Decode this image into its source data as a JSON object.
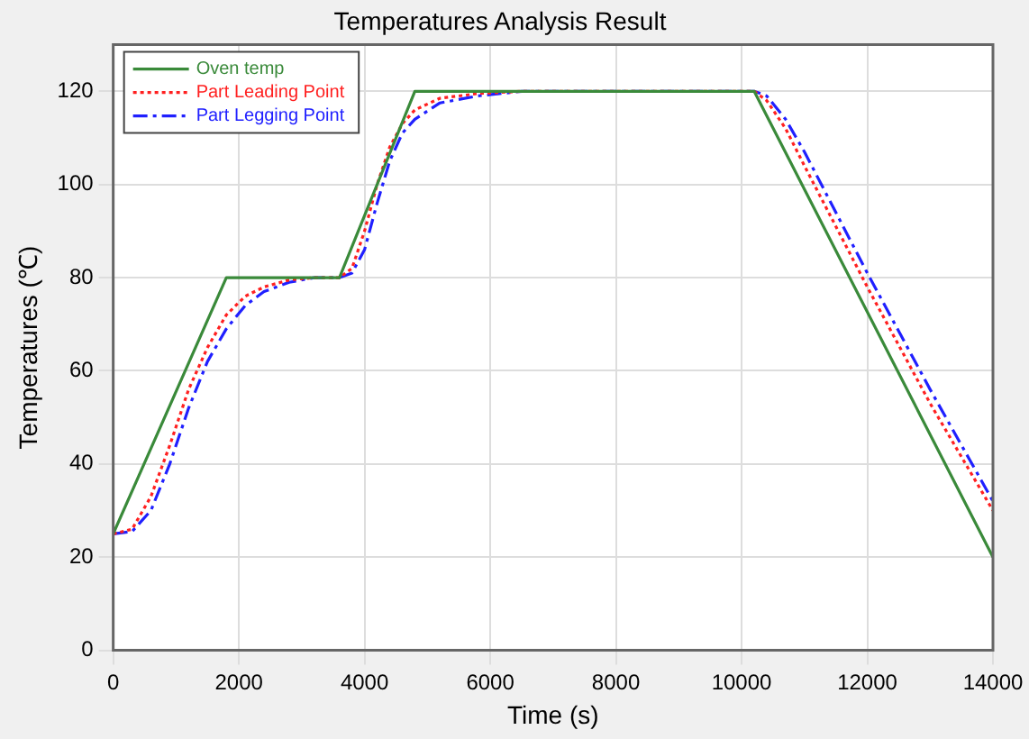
{
  "chart_data": {
    "type": "line",
    "title": "Temperatures Analysis Result",
    "xlabel": "Time (s)",
    "ylabel": "Temperatures (℃)",
    "xlim": [
      0,
      14000
    ],
    "xticks": [
      0,
      2000,
      4000,
      6000,
      8000,
      10000,
      12000,
      14000
    ],
    "ylim": [
      0,
      130
    ],
    "yticks": [
      0,
      20,
      40,
      60,
      80,
      100,
      120
    ],
    "grid": true,
    "legend": "top left",
    "marker": "none",
    "series": [
      {
        "name": "Oven temp",
        "color": "#3a8a3a",
        "line_style": "solid",
        "x": [
          0,
          1800,
          3600,
          4800,
          10200,
          14000
        ],
        "values": [
          25,
          80,
          80,
          120,
          120,
          20
        ]
      },
      {
        "name": "Part Leading Point",
        "color": "#ff2020",
        "line_style": "dotted",
        "x": [
          0,
          300,
          600,
          900,
          1200,
          1500,
          1800,
          2100,
          2400,
          2800,
          3200,
          3600,
          3800,
          4000,
          4200,
          4400,
          4600,
          4800,
          5200,
          5800,
          6500,
          10200,
          10400,
          10700,
          11000,
          12000,
          13000,
          14000
        ],
        "values": [
          25,
          26,
          33,
          44,
          56,
          65,
          72,
          76,
          78,
          79.5,
          80,
          80,
          82,
          90,
          100,
          108,
          113,
          116,
          118.5,
          119.5,
          120,
          120,
          118,
          112,
          104,
          78,
          53,
          30
        ]
      },
      {
        "name": "Part Legging Point",
        "color": "#2020ff",
        "line_style": "dashed",
        "x": [
          0,
          300,
          600,
          900,
          1200,
          1500,
          1800,
          2100,
          2400,
          2800,
          3200,
          3600,
          3800,
          4000,
          4200,
          4400,
          4600,
          4800,
          5200,
          5800,
          6500,
          10200,
          10400,
          10700,
          11000,
          12000,
          13000,
          14000
        ],
        "values": [
          25,
          25.5,
          30,
          40,
          52,
          62,
          69,
          74,
          77,
          79,
          80,
          80,
          81,
          86,
          96,
          105,
          111,
          114,
          117.5,
          119,
          120,
          120,
          119,
          114,
          107,
          81,
          56,
          32
        ]
      }
    ]
  }
}
